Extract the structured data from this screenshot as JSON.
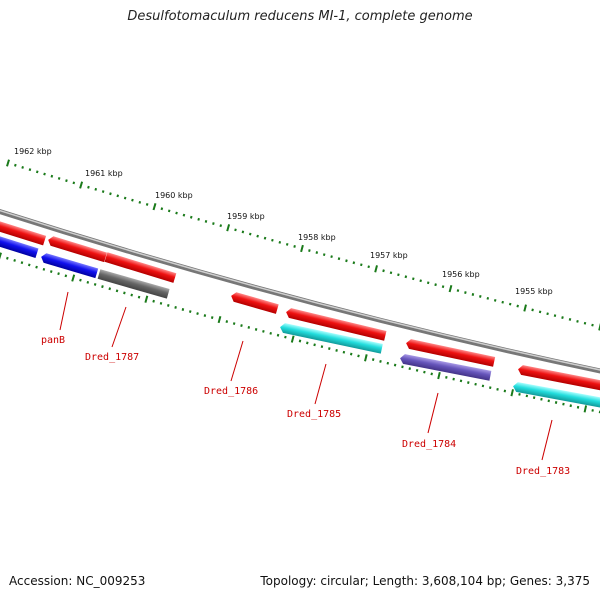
{
  "title": "Desulfotomaculum reducens MI-1, complete genome",
  "footer": {
    "accession": "Accession: NC_009253",
    "topology": "Topology: circular; Length: 3,608,104 bp; Genes: 3,375"
  },
  "colors": {
    "background": "#ffffff",
    "backbone": "#888888",
    "ruler_ticks": "#1a7a1a",
    "gene_red": "#ee1111",
    "gene_cyan": "#22dddd",
    "gene_blue": "#1111ee",
    "gene_gray": "#666666",
    "gene_purple": "#6655bb",
    "label_text": "#cc0000"
  },
  "ruler_labels": [
    "1962 kbp",
    "1961 kbp",
    "1960 kbp",
    "1959 kbp",
    "1958 kbp",
    "1957 kbp",
    "1956 kbp",
    "1955 kbp"
  ],
  "gene_labels": [
    "panB",
    "Dred_1787",
    "Dred_1786",
    "Dred_1785",
    "Dred_1784",
    "Dred_1783"
  ]
}
